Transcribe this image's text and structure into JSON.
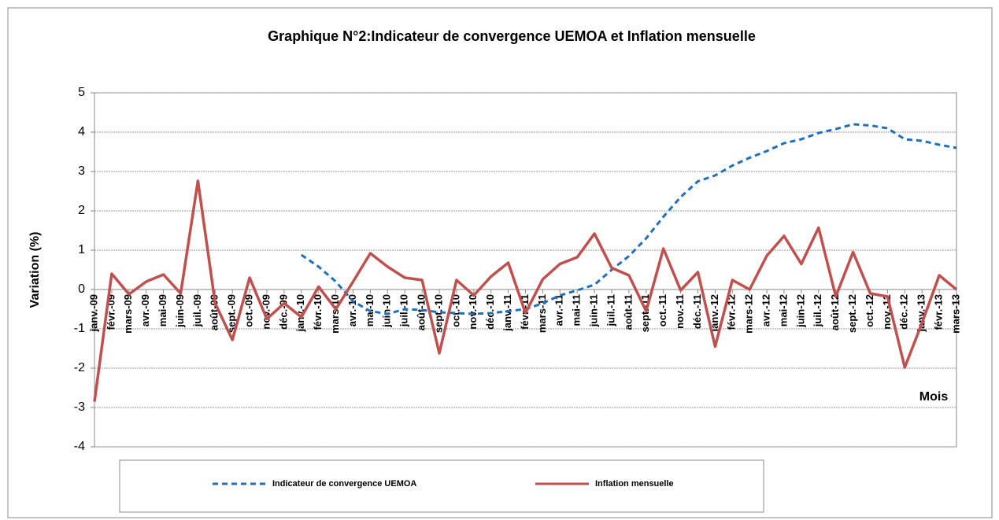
{
  "chart_data": {
    "type": "line",
    "title": "Graphique N°2:Indicateur de convergence UEMOA et Inflation mensuelle",
    "y_label": "Variation (%)",
    "x_label": "Mois",
    "categories": [
      "janv.-09",
      "févr.-09",
      "mars-09",
      "avr.-09",
      "mai-09",
      "juin-09",
      "juil.-09",
      "août-09",
      "sept.-09",
      "oct.-09",
      "nov.-09",
      "déc.-09",
      "janv.-10",
      "févr.-10",
      "mars-10",
      "avr.-10",
      "mai-10",
      "juin-10",
      "juil.-10",
      "août-10",
      "sept.-10",
      "oct.-10",
      "nov.-10",
      "déc.-10",
      "janv.-11",
      "févr.-11",
      "mars-11",
      "avr.-11",
      "mai-11",
      "juin-11",
      "juil.-11",
      "août-11",
      "sept.-11",
      "oct.-11",
      "nov.-11",
      "déc.-11",
      "janv.-12",
      "févr.-12",
      "mars-12",
      "avr.-12",
      "mai-12",
      "juin-12",
      "juil.-12",
      "août-12",
      "sept.-12",
      "oct.-12",
      "nov.-12",
      "déc.-12",
      "janv.-13",
      "févr.-13",
      "mars-13"
    ],
    "series": [
      {
        "name": "Indicateur de convergence UEMOA",
        "color": "#1f6fbf",
        "dashed": true,
        "values": [
          null,
          null,
          null,
          null,
          null,
          null,
          null,
          null,
          null,
          null,
          null,
          null,
          0.88,
          0.58,
          0.2,
          -0.3,
          -0.55,
          -0.62,
          -0.5,
          -0.52,
          -0.58,
          -0.6,
          -0.62,
          -0.6,
          -0.55,
          -0.5,
          -0.35,
          -0.15,
          -0.02,
          0.12,
          0.5,
          0.85,
          1.3,
          1.85,
          2.35,
          2.75,
          2.9,
          3.15,
          3.35,
          3.52,
          3.72,
          3.82,
          3.98,
          4.08,
          4.2,
          4.17,
          4.1,
          3.82,
          3.78,
          3.68,
          3.6
        ]
      },
      {
        "name": "Inflation mensuelle",
        "color": "#c0504d",
        "dashed": false,
        "values": [
          -2.85,
          0.4,
          -0.12,
          0.2,
          0.38,
          -0.1,
          2.76,
          -0.35,
          -1.28,
          0.3,
          -0.75,
          -0.35,
          -0.7,
          0.07,
          -0.5,
          0.2,
          0.92,
          0.58,
          0.3,
          0.24,
          -1.62,
          0.24,
          -0.15,
          0.33,
          0.68,
          -0.6,
          0.26,
          0.65,
          0.82,
          1.42,
          0.55,
          0.36,
          -0.55,
          1.04,
          -0.02,
          0.44,
          -1.45,
          0.24,
          0,
          0.86,
          1.36,
          0.65,
          1.57,
          -0.18,
          0.95,
          -0.1,
          -0.18,
          -1.98,
          -0.85,
          0.36,
          0
        ]
      }
    ],
    "ylim": [
      -4,
      5
    ],
    "yticks": [
      -4,
      -3,
      -2,
      -1,
      0,
      1,
      2,
      3,
      4,
      5
    ],
    "grid": true
  }
}
